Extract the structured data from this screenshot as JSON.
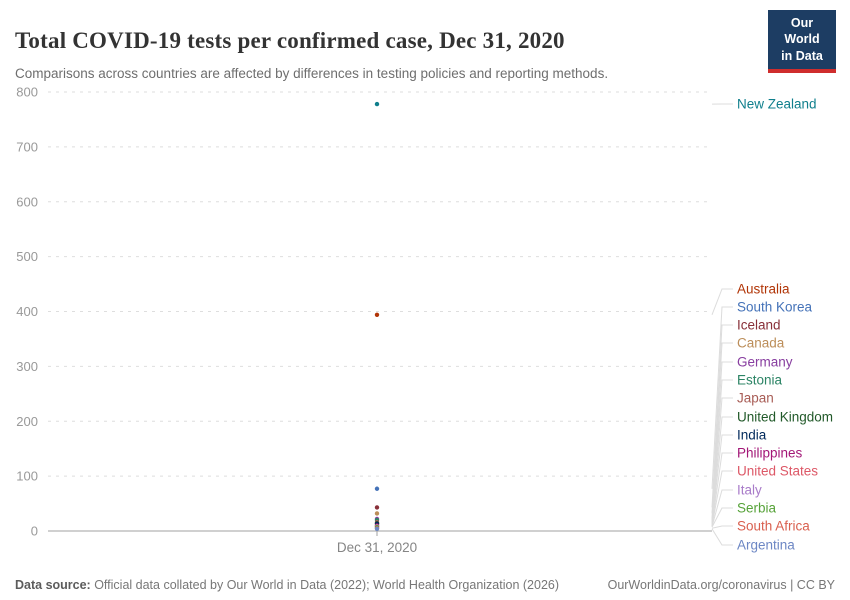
{
  "header": {
    "title": "Total COVID-19 tests per confirmed case, Dec 31, 2020",
    "subtitle": "Comparisons across countries are affected by differences in testing policies and reporting methods.",
    "logo": {
      "line1": "Our World",
      "line2": "in Data",
      "bg_color": "#1d3d63",
      "bar_color": "#cf2d2d"
    }
  },
  "chart_data": {
    "type": "scatter",
    "title": "Total COVID-19 tests per confirmed case, Dec 31, 2020",
    "xlabel": "",
    "ylabel": "",
    "x_tick_label": "Dec 31, 2020",
    "ylim": [
      0,
      800
    ],
    "y_ticks": [
      0,
      100,
      200,
      300,
      400,
      500,
      600,
      700,
      800
    ],
    "grid": "horizontal-dashed",
    "legend_position": "right-entity-labels",
    "series": [
      {
        "name": "New Zealand",
        "value": 778,
        "color": "#0f7f8c",
        "label_y": 104
      },
      {
        "name": "Australia",
        "value": 394,
        "color": "#b13507",
        "label_y": 289
      },
      {
        "name": "South Korea",
        "value": 77,
        "color": "#4472b8",
        "label_y": 307
      },
      {
        "name": "Iceland",
        "value": 43,
        "color": "#883039",
        "label_y": 325
      },
      {
        "name": "Canada",
        "value": 32,
        "color": "#bc8e5a",
        "label_y": 343
      },
      {
        "name": "Germany",
        "value": 22,
        "color": "#883ea0",
        "label_y": 362
      },
      {
        "name": "Estonia",
        "value": 20,
        "color": "#2c8465",
        "label_y": 380
      },
      {
        "name": "Japan",
        "value": 16,
        "color": "#a85d56",
        "label_y": 398
      },
      {
        "name": "United Kingdom",
        "value": 14,
        "color": "#215929",
        "label_y": 417
      },
      {
        "name": "India",
        "value": 13,
        "color": "#00295b",
        "label_y": 435
      },
      {
        "name": "Philippines",
        "value": 10,
        "color": "#a31777",
        "label_y": 453
      },
      {
        "name": "United States",
        "value": 9,
        "color": "#dd5867",
        "label_y": 471
      },
      {
        "name": "Italy",
        "value": 8,
        "color": "#a97cc9",
        "label_y": 490
      },
      {
        "name": "Serbia",
        "value": 7,
        "color": "#57a33a",
        "label_y": 508
      },
      {
        "name": "South Africa",
        "value": 5,
        "color": "#d9604f",
        "label_y": 526
      },
      {
        "name": "Argentina",
        "value": 4,
        "color": "#6d87c4",
        "label_y": 545
      }
    ],
    "colors": {
      "gridline": "#dedede",
      "axis_line": "#a1a1a1",
      "tick_label": "#999999",
      "connector": "#dcdcdc"
    }
  },
  "footer": {
    "source_label": "Data source:",
    "source_text": " Official data collated by Our World in Data (2022); World Health Organization (2026)",
    "link_text": "OurWorldinData.org/coronavirus | CC BY"
  }
}
